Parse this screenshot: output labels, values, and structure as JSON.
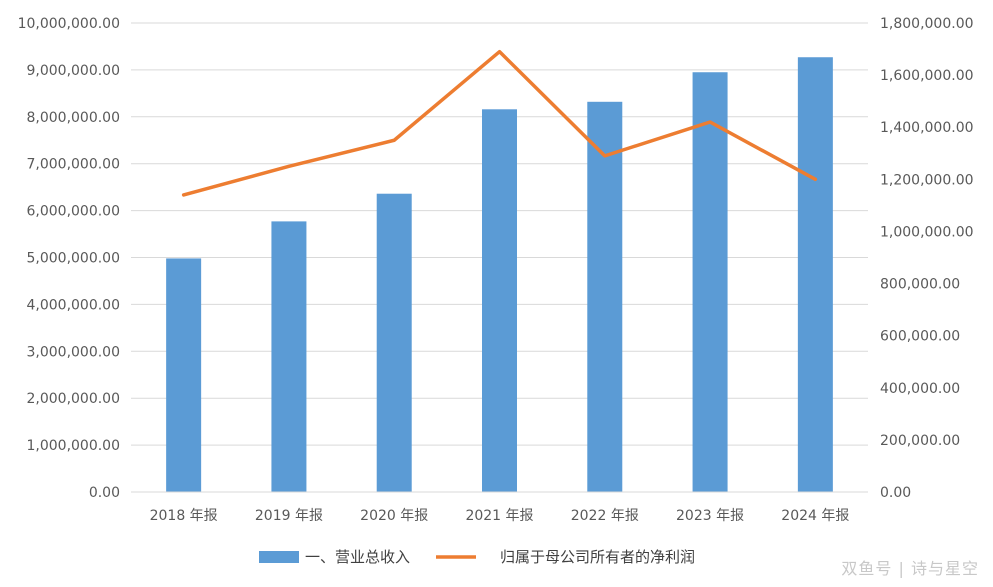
{
  "chart_data": {
    "type": "bar",
    "categories": [
      "2018 年报",
      "2019 年报",
      "2020 年报",
      "2021 年报",
      "2022 年报",
      "2023 年报",
      "2024 年报"
    ],
    "series": [
      {
        "name": "一、营业总收入",
        "type": "bar",
        "axis": "left",
        "color": "#5B9BD5",
        "values": [
          4980000,
          5770000,
          6360000,
          8160000,
          8320000,
          8950000,
          9270000
        ]
      },
      {
        "name": "归属于母公司所有者的净利润",
        "type": "line",
        "axis": "right",
        "color": "#ED7D31",
        "values": [
          1140000,
          1250000,
          1350000,
          1690000,
          1290000,
          1420000,
          1200000
        ]
      }
    ],
    "y_left": {
      "lim": [
        0,
        10000000
      ],
      "ticks": [
        "0.00",
        "1,000,000.00",
        "2,000,000.00",
        "3,000,000.00",
        "4,000,000.00",
        "5,000,000.00",
        "6,000,000.00",
        "7,000,000.00",
        "8,000,000.00",
        "9,000,000.00",
        "10,000,000.00"
      ]
    },
    "y_right": {
      "lim": [
        0,
        1800000
      ],
      "ticks": [
        "0.00",
        "200,000.00",
        "400,000.00",
        "600,000.00",
        "800,000.00",
        "1,000,000.00",
        "1,200,000.00",
        "1,400,000.00",
        "1,600,000.00",
        "1,800,000.00"
      ]
    },
    "grid": true,
    "legend_position": "bottom"
  },
  "watermark": "双鱼号 | 诗与星空"
}
